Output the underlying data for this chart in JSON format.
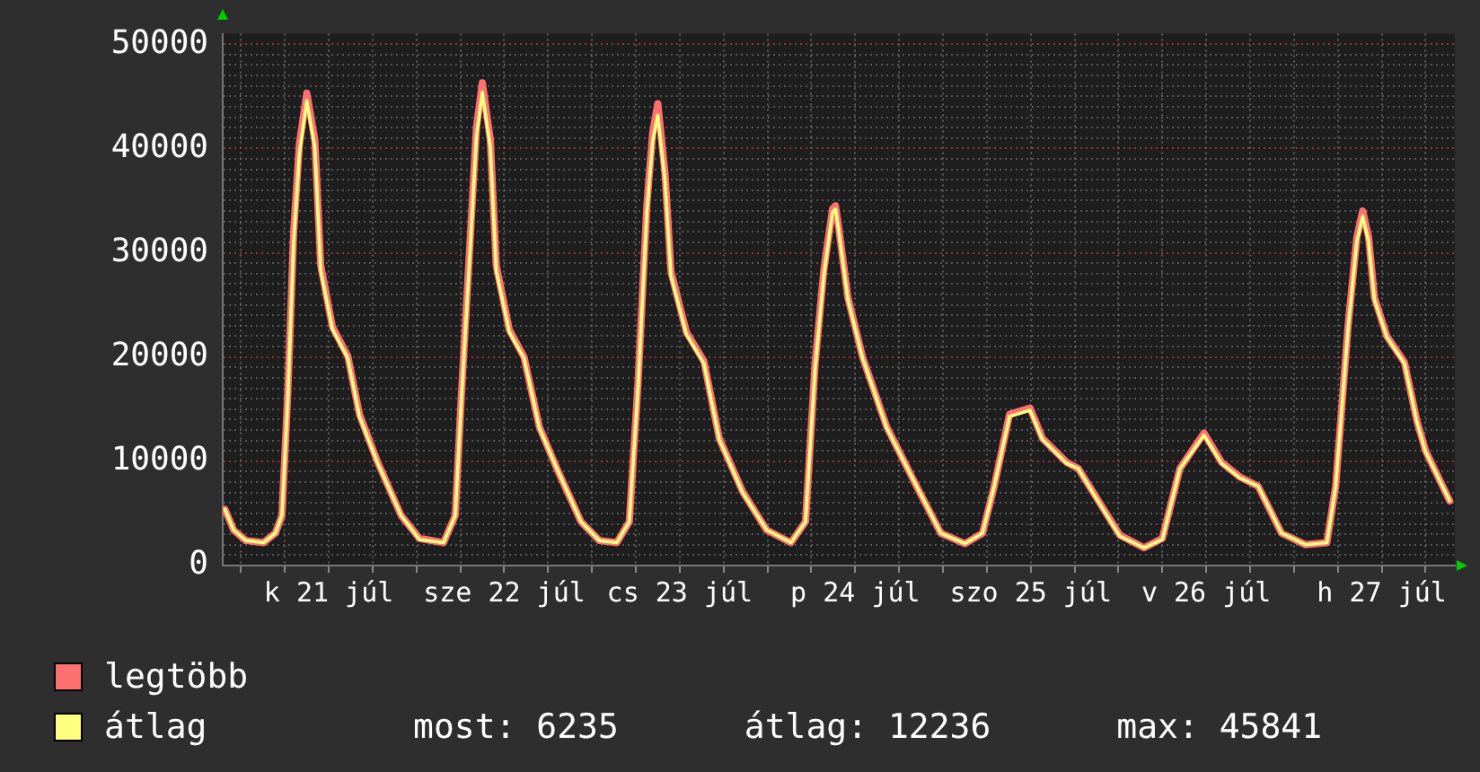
{
  "chart_data": {
    "type": "line",
    "x": [
      "--07-20T21:48",
      "--07-20T23:00",
      "--07-21T00:40",
      "--07-21T03:06",
      "--07-21T04:42",
      "--07-21T05:36",
      "--07-21T06:24",
      "--07-21T07:12",
      "--07-21T08:00",
      "--07-21T09:00",
      "--07-21T10:06",
      "--07-21T10:54",
      "--07-21T12:30",
      "--07-21T14:36",
      "--07-21T16:12",
      "--07-21T18:42",
      "--07-21T21:54",
      "--07-22T00:24",
      "--07-22T03:42",
      "--07-22T05:18",
      "--07-22T06:06",
      "--07-22T07:24",
      "--07-22T08:12",
      "--07-22T09:00",
      "--07-22T10:06",
      "--07-22T10:54",
      "--07-22T12:42",
      "--07-22T14:42",
      "--07-22T16:48",
      "--07-22T19:12",
      "--07-22T22:30",
      "--07-23T01:00",
      "--07-23T03:24",
      "--07-23T05:06",
      "--07-23T06:18",
      "--07-23T07:30",
      "--07-23T08:18",
      "--07-23T09:00",
      "--07-23T10:00",
      "--07-23T10:48",
      "--07-23T12:54",
      "--07-23T15:18",
      "--07-23T17:24",
      "--07-23T20:36",
      "--07-23T23:54",
      "--07-24T03:12",
      "--07-24T05:12",
      "--07-24T06:30",
      "--07-24T07:42",
      "--07-24T08:54",
      "--07-24T09:18",
      "--07-24T09:42",
      "--07-24T11:00",
      "--07-24T13:00",
      "--07-24T16:18",
      "--07-24T20:24",
      "--07-24T23:42",
      "--07-25T03:00",
      "--07-25T05:24",
      "--07-25T07:00",
      "--07-25T09:06",
      "--07-25T11:54",
      "--07-25T13:36",
      "--07-25T16:54",
      "--07-25T18:30",
      "--07-25T21:00",
      "--07-26T00:12",
      "--07-26T03:30",
      "--07-26T06:00",
      "--07-26T08:24",
      "--07-26T11:42",
      "--07-26T14:06",
      "--07-26T16:36",
      "--07-26T19:06",
      "--07-26T22:18",
      "--07-27T01:36",
      "--07-27T04:30",
      "--07-27T05:42",
      "--07-27T07:24",
      "--07-27T08:36",
      "--07-27T09:24",
      "--07-27T10:12",
      "--07-27T11:00",
      "--07-27T12:42",
      "--07-27T15:06",
      "--07-27T16:48",
      "--07-27T18:00",
      "--07-27T21:18"
    ],
    "series": [
      {
        "name": "legtöbb",
        "color": "#ff7070",
        "values": [
          5400,
          3400,
          2400,
          2200,
          3100,
          4800,
          16500,
          32000,
          40500,
          45300,
          40800,
          28800,
          22900,
          20100,
          14500,
          9900,
          4800,
          2600,
          2200,
          4800,
          15800,
          32000,
          42000,
          46300,
          40800,
          28800,
          22600,
          20000,
          13300,
          9300,
          4200,
          2400,
          2200,
          4200,
          17500,
          34500,
          41500,
          44300,
          37500,
          28200,
          22400,
          19600,
          12200,
          7100,
          3400,
          2200,
          4200,
          19200,
          28300,
          34200,
          34500,
          32600,
          25700,
          20000,
          13300,
          7600,
          3100,
          2100,
          3100,
          7600,
          14500,
          15100,
          12200,
          9900,
          9300,
          6500,
          2900,
          1700,
          2600,
          9300,
          12700,
          9900,
          8500,
          7600,
          3100,
          2000,
          2200,
          7600,
          23000,
          31500,
          34000,
          31500,
          25700,
          22000,
          19500,
          13900,
          11000,
          6200
        ]
      },
      {
        "name": "átlag",
        "color": "#ffff80",
        "values": [
          5400,
          3400,
          2400,
          2200,
          3100,
          4800,
          16000,
          31100,
          39600,
          44600,
          40100,
          28300,
          22700,
          19900,
          14300,
          9800,
          4800,
          2500,
          2200,
          4800,
          15400,
          31100,
          41200,
          45400,
          40100,
          28300,
          22400,
          19900,
          13200,
          9300,
          4200,
          2400,
          2200,
          4200,
          17100,
          33900,
          40700,
          43200,
          36800,
          27800,
          22200,
          19400,
          12100,
          7000,
          3400,
          2200,
          4200,
          18800,
          27800,
          33900,
          34200,
          32300,
          25500,
          19900,
          13200,
          7600,
          3100,
          2100,
          3100,
          7600,
          14300,
          14900,
          12100,
          9800,
          9300,
          6400,
          2800,
          1700,
          2500,
          9300,
          12500,
          9800,
          8400,
          7600,
          3100,
          2000,
          2200,
          7600,
          22700,
          31100,
          33500,
          31100,
          25500,
          21900,
          19400,
          13800,
          10900,
          6200
        ]
      }
    ],
    "xlim": [
      "--07-20T21:30",
      "--07-27T22:00"
    ],
    "xticks": [
      {
        "value": "--07-21T00:00",
        "label": null
      },
      {
        "value": "--07-21T06:00",
        "label": null
      },
      {
        "value": "--07-21T12:00",
        "label": "k 21 júl"
      },
      {
        "value": "--07-21T18:00",
        "label": null
      },
      {
        "value": "--07-22T00:00",
        "label": null
      },
      {
        "value": "--07-22T06:00",
        "label": null
      },
      {
        "value": "--07-22T12:00",
        "label": "sze 22 júl"
      },
      {
        "value": "--07-22T18:00",
        "label": null
      },
      {
        "value": "--07-23T00:00",
        "label": null
      },
      {
        "value": "--07-23T06:00",
        "label": null
      },
      {
        "value": "--07-23T12:00",
        "label": "cs 23 júl"
      },
      {
        "value": "--07-23T18:00",
        "label": null
      },
      {
        "value": "--07-24T00:00",
        "label": null
      },
      {
        "value": "--07-24T06:00",
        "label": null
      },
      {
        "value": "--07-24T12:00",
        "label": "p 24 júl"
      },
      {
        "value": "--07-24T18:00",
        "label": null
      },
      {
        "value": "--07-25T00:00",
        "label": null
      },
      {
        "value": "--07-25T06:00",
        "label": null
      },
      {
        "value": "--07-25T12:00",
        "label": "szo 25 júl"
      },
      {
        "value": "--07-25T18:00",
        "label": null
      },
      {
        "value": "--07-26T00:00",
        "label": null
      },
      {
        "value": "--07-26T06:00",
        "label": null
      },
      {
        "value": "--07-26T12:00",
        "label": "v 26 júl"
      },
      {
        "value": "--07-26T18:00",
        "label": null
      },
      {
        "value": "--07-27T00:00",
        "label": null
      },
      {
        "value": "--07-27T06:00",
        "label": null
      },
      {
        "value": "--07-27T12:00",
        "label": "h 27 júl"
      },
      {
        "value": "--07-27T18:00",
        "label": null
      }
    ],
    "ylim": [
      0,
      51000
    ],
    "yticks": [
      0,
      {
        "value": 1000,
        "label": null
      },
      {
        "value": 2000,
        "label": null
      },
      {
        "value": 3000,
        "label": null
      },
      {
        "value": 4000,
        "label": null
      },
      {
        "value": 5000,
        "label": null
      },
      {
        "value": 6000,
        "label": null
      },
      {
        "value": 7000,
        "label": null
      },
      {
        "value": 8000,
        "label": null
      },
      {
        "value": 9000,
        "label": null
      },
      10000,
      {
        "value": 11000,
        "label": null
      },
      {
        "value": 12000,
        "label": null
      },
      {
        "value": 13000,
        "label": null
      },
      {
        "value": 14000,
        "label": null
      },
      {
        "value": 15000,
        "label": null
      },
      {
        "value": 16000,
        "label": null
      },
      {
        "value": 17000,
        "label": null
      },
      {
        "value": 18000,
        "label": null
      },
      {
        "value": 19000,
        "label": null
      },
      20000,
      {
        "value": 21000,
        "label": null
      },
      {
        "value": 22000,
        "label": null
      },
      {
        "value": 23000,
        "label": null
      },
      {
        "value": 24000,
        "label": null
      },
      {
        "value": 25000,
        "label": null
      },
      {
        "value": 26000,
        "label": null
      },
      {
        "value": 27000,
        "label": null
      },
      {
        "value": 28000,
        "label": null
      },
      {
        "value": 29000,
        "label": null
      },
      30000,
      {
        "value": 31000,
        "label": null
      },
      {
        "value": 32000,
        "label": null
      },
      {
        "value": 33000,
        "label": null
      },
      {
        "value": 34000,
        "label": null
      },
      {
        "value": 35000,
        "label": null
      },
      {
        "value": 36000,
        "label": null
      },
      {
        "value": 37000,
        "label": null
      },
      {
        "value": 38000,
        "label": null
      },
      {
        "value": 39000,
        "label": null
      },
      40000,
      {
        "value": 41000,
        "label": null
      },
      {
        "value": 42000,
        "label": null
      },
      {
        "value": 43000,
        "label": null
      },
      {
        "value": 44000,
        "label": null
      },
      {
        "value": 45000,
        "label": null
      },
      {
        "value": 46000,
        "label": null
      },
      {
        "value": 47000,
        "label": null
      },
      {
        "value": 48000,
        "label": null
      },
      {
        "value": 49000,
        "label": null
      },
      50000
    ],
    "grid": true,
    "legend": "bottom left",
    "marker": "none",
    "line_style": "solid",
    "annotations": [
      "most: 6235",
      "átlag: 12236",
      "max: 45841"
    ]
  }
}
